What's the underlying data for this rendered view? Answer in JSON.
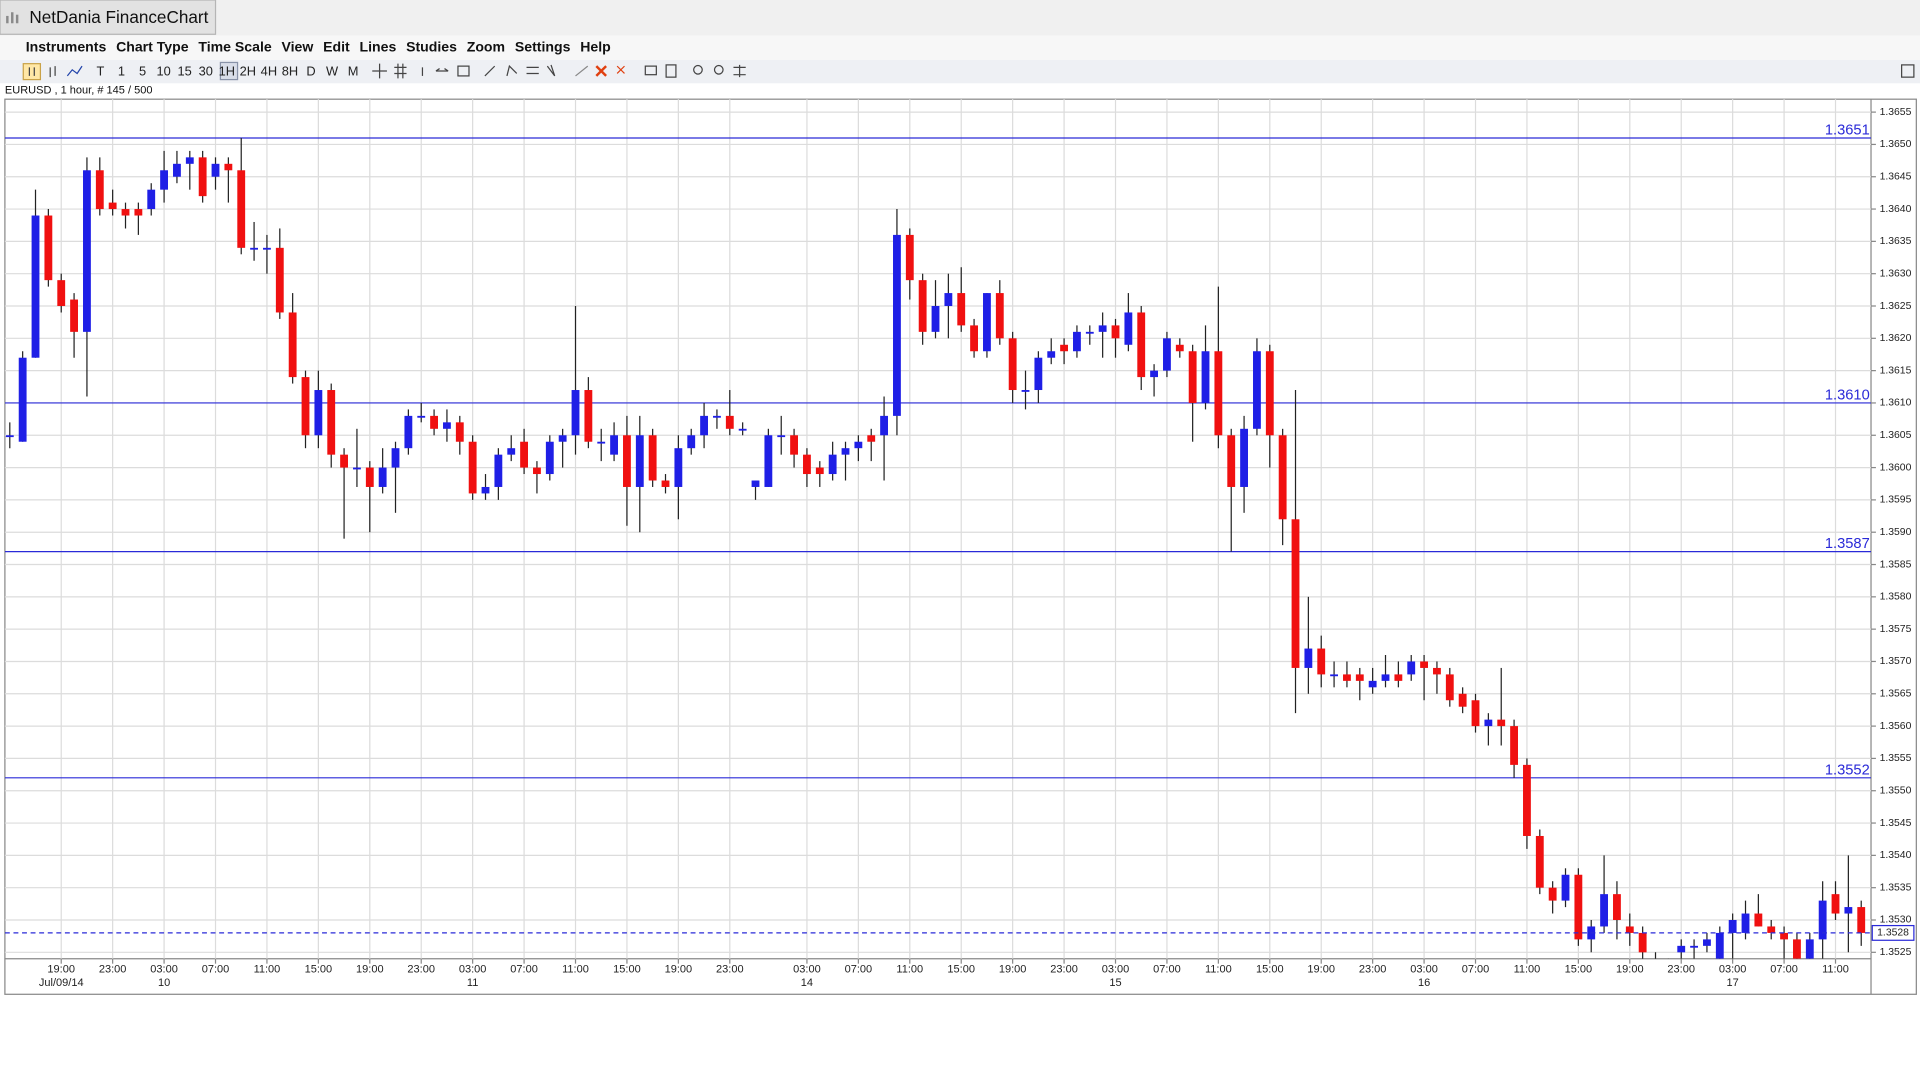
{
  "window": {
    "title": "NetDania FinanceChart"
  },
  "menu": [
    "Instruments",
    "Chart Type",
    "Time Scale",
    "View",
    "Edit",
    "Lines",
    "Studies",
    "Zoom",
    "Settings",
    "Help"
  ],
  "toolbar": [
    "T",
    "1",
    "5",
    "10",
    "15",
    "30",
    "1H",
    "2H",
    "4H",
    "8H",
    "D",
    "W",
    "M"
  ],
  "chart_info": "EURUSD , 1 hour, # 145 / 500",
  "chart_data": {
    "type": "candlestick",
    "up_color": "#1f1fe6",
    "down_color": "#f01010",
    "level_color": "#2a2ad8",
    "grid": true,
    "ylim": [
      1.3524,
      1.3657
    ],
    "yticks": [
      1.3525,
      {
        "value": 1.353,
        "label": "1.3530"
      },
      1.3535,
      {
        "value": 1.354,
        "label": "1.3540"
      },
      1.3545,
      {
        "value": 1.355,
        "label": "1.3550"
      },
      1.3555,
      {
        "value": 1.356,
        "label": "1.3560"
      },
      1.3565,
      {
        "value": 1.357,
        "label": "1.3570"
      },
      1.3575,
      {
        "value": 1.358,
        "label": "1.3580"
      },
      1.3585,
      {
        "value": 1.359,
        "label": "1.3590"
      },
      1.3595,
      {
        "value": 1.36,
        "label": "1.3600"
      },
      1.3605,
      {
        "value": 1.361,
        "label": "1.3610"
      },
      1.3615,
      {
        "value": 1.362,
        "label": "1.3620"
      },
      1.3625,
      {
        "value": 1.363,
        "label": "1.3630"
      },
      1.3635,
      {
        "value": 1.364,
        "label": "1.3640"
      },
      1.3645,
      {
        "value": 1.365,
        "label": "1.3650"
      },
      1.3655
    ],
    "xticks": [
      {
        "value": 4,
        "label": "19:00"
      },
      {
        "value": 8,
        "label": "23:00"
      },
      {
        "value": 12,
        "label": "03:00"
      },
      {
        "value": 16,
        "label": "07:00"
      },
      {
        "value": 20,
        "label": "11:00"
      },
      {
        "value": 24,
        "label": "15:00"
      },
      {
        "value": 28,
        "label": "19:00"
      },
      {
        "value": 32,
        "label": "23:00"
      },
      {
        "value": 36,
        "label": "03:00"
      },
      {
        "value": 40,
        "label": "07:00"
      },
      {
        "value": 44,
        "label": "11:00"
      },
      {
        "value": 48,
        "label": "15:00"
      },
      {
        "value": 52,
        "label": "19:00"
      },
      {
        "value": 56,
        "label": "23:00"
      },
      {
        "value": 62,
        "label": "03:00"
      },
      {
        "value": 66,
        "label": "07:00"
      },
      {
        "value": 70,
        "label": "11:00"
      },
      {
        "value": 74,
        "label": "15:00"
      },
      {
        "value": 78,
        "label": "19:00"
      },
      {
        "value": 82,
        "label": "23:00"
      },
      {
        "value": 86,
        "label": "03:00"
      },
      {
        "value": 90,
        "label": "07:00"
      },
      {
        "value": 94,
        "label": "11:00"
      },
      {
        "value": 98,
        "label": "15:00"
      },
      {
        "value": 102,
        "label": "19:00"
      },
      {
        "value": 106,
        "label": "23:00"
      },
      {
        "value": 110,
        "label": "03:00"
      },
      {
        "value": 114,
        "label": "07:00"
      },
      {
        "value": 118,
        "label": "11:00"
      },
      {
        "value": 122,
        "label": "15:00"
      },
      {
        "value": 126,
        "label": "19:00"
      },
      {
        "value": 130,
        "label": "23:00"
      },
      {
        "value": 134,
        "label": "03:00"
      },
      {
        "value": 138,
        "label": "07:00"
      },
      {
        "value": 142,
        "label": "11:00"
      }
    ],
    "day_labels": [
      {
        "value": 4,
        "label": "Jul/09/14"
      },
      {
        "value": 12,
        "label": "10"
      },
      {
        "value": 36,
        "label": "11"
      },
      {
        "value": 62,
        "label": "14"
      },
      {
        "value": 86,
        "label": "15"
      },
      {
        "value": 110,
        "label": "16"
      },
      {
        "value": 134,
        "label": "17"
      }
    ],
    "levels": [
      1.3651,
      {
        "value": 1.361,
        "label": "1.3610"
      },
      1.3587,
      1.3552
    ],
    "open": [
      1.3605,
      1.3604,
      1.3617,
      1.3639,
      1.3629,
      1.3626,
      1.3621,
      1.3646,
      1.3641,
      1.364,
      1.364,
      1.364,
      1.3643,
      1.3645,
      1.3647,
      1.3648,
      1.3645,
      1.3647,
      1.3646,
      1.3634,
      1.3634,
      1.3634,
      1.3624,
      1.3614,
      1.3605,
      1.3612,
      1.3602,
      1.36,
      1.36,
      1.3597,
      1.36,
      1.3603,
      1.3608,
      1.3608,
      1.3606,
      1.3607,
      1.3604,
      1.3596,
      1.3597,
      1.3602,
      1.3604,
      1.36,
      1.3599,
      1.3604,
      1.3605,
      1.3612,
      1.3604,
      1.3602,
      1.3605,
      1.3597,
      1.3605,
      1.3598,
      1.3597,
      1.3603,
      1.3605,
      1.3608,
      1.3608,
      1.3606,
      1.3597,
      1.3597,
      1.3605,
      1.3605,
      1.3602,
      1.36,
      1.3599,
      1.3602,
      1.3603,
      1.3605,
      1.3605,
      1.3608,
      1.3636,
      1.3629,
      1.3621,
      1.3625,
      1.3627,
      1.3622,
      1.3618,
      1.3627,
      1.362,
      1.3612,
      1.3612,
      1.3617,
      1.3619,
      1.3618,
      1.3621,
      1.3621,
      1.3622,
      1.3619,
      1.3624,
      1.3614,
      1.3615,
      1.3619,
      1.3618,
      1.361,
      1.3618,
      1.3605,
      1.3597,
      1.3606,
      1.3618,
      1.3605,
      1.3592,
      1.3569,
      1.3572,
      1.3568,
      1.3568,
      1.3568,
      1.3566,
      1.3567,
      1.3568,
      1.3568,
      1.357,
      1.3569,
      1.3568,
      1.3565,
      1.3564,
      1.356,
      1.3561,
      1.356,
      1.3554,
      1.3543,
      1.3535,
      1.3533,
      1.3537,
      1.3527,
      1.3529,
      1.3534,
      1.3529,
      1.3528,
      1.3524,
      1.3523,
      1.3525,
      1.3526,
      1.3526,
      1.3524,
      1.3528,
      1.3528,
      1.3531,
      1.3529,
      1.3528,
      1.3527,
      1.3524,
      1.3527,
      1.3534,
      1.3531,
      1.3532
    ],
    "high": [
      1.3607,
      1.3618,
      1.3643,
      1.364,
      1.363,
      1.3627,
      1.3648,
      1.3648,
      1.3643,
      1.3641,
      1.3641,
      1.3644,
      1.3649,
      1.3649,
      1.3649,
      1.3649,
      1.3648,
      1.3648,
      1.3651,
      1.3638,
      1.3636,
      1.3637,
      1.3627,
      1.3615,
      1.3615,
      1.3613,
      1.3603,
      1.3606,
      1.3601,
      1.3603,
      1.3604,
      1.3609,
      1.361,
      1.3609,
      1.3609,
      1.3608,
      1.3605,
      1.3599,
      1.3603,
      1.3605,
      1.3606,
      1.3601,
      1.3605,
      1.3606,
      1.3625,
      1.3614,
      1.3606,
      1.3607,
      1.3608,
      1.3608,
      1.3606,
      1.3599,
      1.3605,
      1.3606,
      1.361,
      1.3609,
      1.3612,
      1.3607,
      1.3598,
      1.3606,
      1.3608,
      1.3606,
      1.3603,
      1.3601,
      1.3604,
      1.3604,
      1.3605,
      1.3606,
      1.3611,
      1.364,
      1.3637,
      1.363,
      1.3629,
      1.363,
      1.3631,
      1.3623,
      1.3627,
      1.3629,
      1.3621,
      1.3615,
      1.3618,
      1.362,
      1.362,
      1.3622,
      1.3622,
      1.3624,
      1.3623,
      1.3627,
      1.3625,
      1.3616,
      1.3621,
      1.362,
      1.3619,
      1.3622,
      1.3628,
      1.3606,
      1.3608,
      1.362,
      1.3619,
      1.3606,
      1.3612,
      1.358,
      1.3574,
      1.357,
      1.357,
      1.3569,
      1.3569,
      1.3571,
      1.357,
      1.3571,
      1.3571,
      1.357,
      1.3569,
      1.3566,
      1.3565,
      1.3562,
      1.3569,
      1.3561,
      1.3555,
      1.3544,
      1.3536,
      1.3538,
      1.3538,
      1.353,
      1.354,
      1.3536,
      1.3531,
      1.3529,
      1.3525,
      1.3524,
      1.3527,
      1.3527,
      1.3528,
      1.3529,
      1.3531,
      1.3533,
      1.3534,
      1.353,
      1.3529,
      1.3528,
      1.3528,
      1.3536,
      1.3536,
      1.354,
      1.3533
    ],
    "low": [
      1.3603,
      1.3604,
      1.3617,
      1.3628,
      1.3624,
      1.3617,
      1.3611,
      1.3639,
      1.3639,
      1.3637,
      1.3636,
      1.3639,
      1.3641,
      1.3644,
      1.3643,
      1.3641,
      1.3643,
      1.3641,
      1.3633,
      1.3632,
      1.363,
      1.3623,
      1.3613,
      1.3603,
      1.3603,
      1.36,
      1.3589,
      1.3597,
      1.359,
      1.3596,
      1.3593,
      1.3602,
      1.3607,
      1.3605,
      1.3604,
      1.3602,
      1.3595,
      1.3595,
      1.3595,
      1.3601,
      1.3599,
      1.3596,
      1.3598,
      1.36,
      1.3602,
      1.3603,
      1.3601,
      1.3601,
      1.3591,
      1.359,
      1.3597,
      1.3596,
      1.3592,
      1.3602,
      1.3603,
      1.3606,
      1.3605,
      1.3605,
      1.3595,
      1.3597,
      1.3602,
      1.36,
      1.3597,
      1.3597,
      1.3598,
      1.3598,
      1.3601,
      1.3601,
      1.3598,
      1.3605,
      1.3626,
      1.3619,
      1.362,
      1.362,
      1.3621,
      1.3617,
      1.3617,
      1.3619,
      1.361,
      1.3609,
      1.361,
      1.3616,
      1.3616,
      1.3617,
      1.3619,
      1.3617,
      1.3617,
      1.3618,
      1.3612,
      1.3611,
      1.3614,
      1.3617,
      1.3604,
      1.3609,
      1.3603,
      1.3587,
      1.3593,
      1.3605,
      1.36,
      1.3588,
      1.3562,
      1.3565,
      1.3566,
      1.3566,
      1.3566,
      1.3564,
      1.3565,
      1.3566,
      1.3566,
      1.3567,
      1.3564,
      1.3565,
      1.3563,
      1.3562,
      1.3559,
      1.3557,
      1.3557,
      1.3552,
      1.3541,
      1.3534,
      1.3531,
      1.3532,
      1.3526,
      1.3525,
      1.3528,
      1.3527,
      1.3526,
      1.3522,
      1.3522,
      1.3521,
      1.3523,
      1.3524,
      1.3525,
      1.3523,
      1.3524,
      1.3527,
      1.3529,
      1.3527,
      1.3524,
      1.3523,
      1.3523,
      1.3524,
      1.353,
      1.3525,
      1.3526
    ],
    "close": [
      1.3605,
      1.3617,
      1.3639,
      1.3629,
      1.3625,
      1.3621,
      1.3646,
      1.364,
      1.364,
      1.3639,
      1.3639,
      1.3643,
      1.3646,
      1.3647,
      1.3648,
      1.3642,
      1.3647,
      1.3646,
      1.3634,
      1.3634,
      1.3634,
      1.3624,
      1.3614,
      1.3605,
      1.3612,
      1.3602,
      1.36,
      1.36,
      1.3597,
      1.36,
      1.3603,
      1.3608,
      1.3608,
      1.3606,
      1.3607,
      1.3604,
      1.3596,
      1.3597,
      1.3602,
      1.3603,
      1.36,
      1.3599,
      1.3604,
      1.3605,
      1.3612,
      1.3604,
      1.3604,
      1.3605,
      1.3597,
      1.3605,
      1.3598,
      1.3597,
      1.3603,
      1.3605,
      1.3608,
      1.3608,
      1.3606,
      1.3606,
      1.3598,
      1.3605,
      1.3605,
      1.3602,
      1.3599,
      1.3599,
      1.3602,
      1.3603,
      1.3604,
      1.3604,
      1.3608,
      1.3636,
      1.3629,
      1.3621,
      1.3625,
      1.3627,
      1.3622,
      1.3618,
      1.3627,
      1.362,
      1.3612,
      1.3612,
      1.3617,
      1.3618,
      1.3618,
      1.3621,
      1.3621,
      1.3622,
      1.362,
      1.3624,
      1.3614,
      1.3615,
      1.362,
      1.3618,
      1.361,
      1.3618,
      1.3605,
      1.3597,
      1.3606,
      1.3618,
      1.3605,
      1.3592,
      1.3569,
      1.3572,
      1.3568,
      1.3568,
      1.3567,
      1.3567,
      1.3567,
      1.3568,
      1.3567,
      1.357,
      1.3569,
      1.3568,
      1.3564,
      1.3563,
      1.356,
      1.3561,
      1.356,
      1.3554,
      1.3543,
      1.3535,
      1.3533,
      1.3537,
      1.3527,
      1.3529,
      1.3534,
      1.353,
      1.3528,
      1.3525,
      1.3524,
      1.3523,
      1.3526,
      1.3526,
      1.3527,
      1.3528,
      1.353,
      1.3531,
      1.3529,
      1.3528,
      1.3527,
      1.3524,
      1.3527,
      1.3533,
      1.3531,
      1.3532,
      1.3528
    ]
  }
}
